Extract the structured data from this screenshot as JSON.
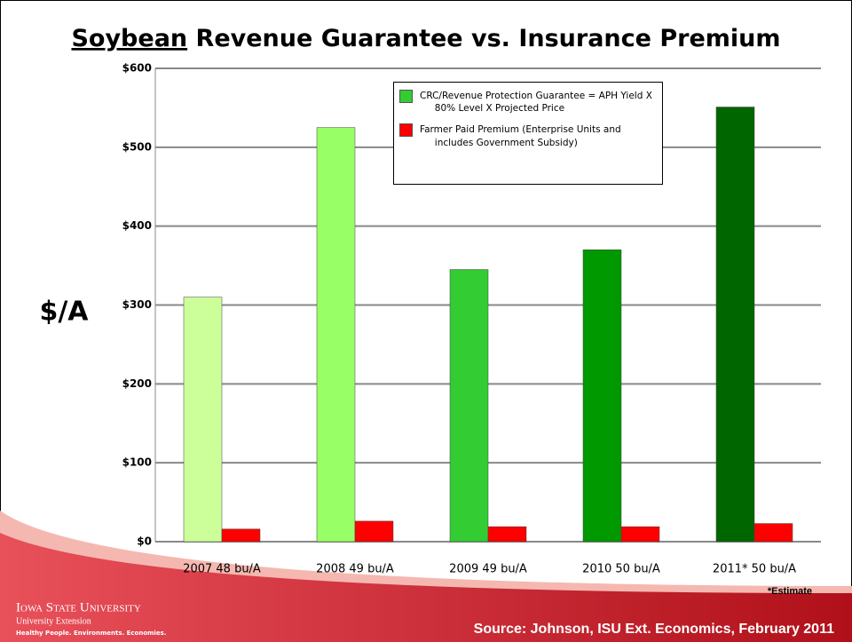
{
  "chart_data": {
    "type": "bar",
    "title_emphasis": "Soybean",
    "title": "Revenue Guarantee vs. Insurance Premium",
    "ylabel": "$/A",
    "categories": [
      "2007 48 bu/A",
      "2008 49 bu/A",
      "2009 49 bu/A",
      "2010 50 bu/A",
      "2011* 50 bu/A"
    ],
    "series": [
      {
        "name": "CRC/Revenue Protection Guarantee = APH Yield X 80% Level X Projected Price",
        "color": "#33cc33",
        "colors": [
          "#ccff99",
          "#99ff66",
          "#33cc33",
          "#009900",
          "#006600"
        ],
        "values": [
          310,
          525,
          345,
          370,
          551
        ]
      },
      {
        "name": "Farmer Paid Premium (Enterprise Units and includes Government Subsidy)",
        "color": "#ff0000",
        "values": [
          16,
          26,
          19,
          19,
          23
        ]
      }
    ],
    "ylim": [
      0,
      600
    ],
    "yticks": [
      {
        "value": 0,
        "label": "$0"
      },
      {
        "value": 100,
        "label": "$100"
      },
      {
        "value": 200,
        "label": "$200"
      },
      {
        "value": 300,
        "label": "$300"
      },
      {
        "value": 400,
        "label": "$400"
      },
      {
        "value": 500,
        "label": "$500"
      },
      {
        "value": 600,
        "label": "$600"
      }
    ],
    "grid": true,
    "note": "*Estimate"
  },
  "footer": {
    "source": "Source:  Johnson, ISU Ext. Economics, February 2011",
    "university": "Iowa State University",
    "unit": "University Extension",
    "tagline": "Healthy People. Environments. Economies."
  }
}
